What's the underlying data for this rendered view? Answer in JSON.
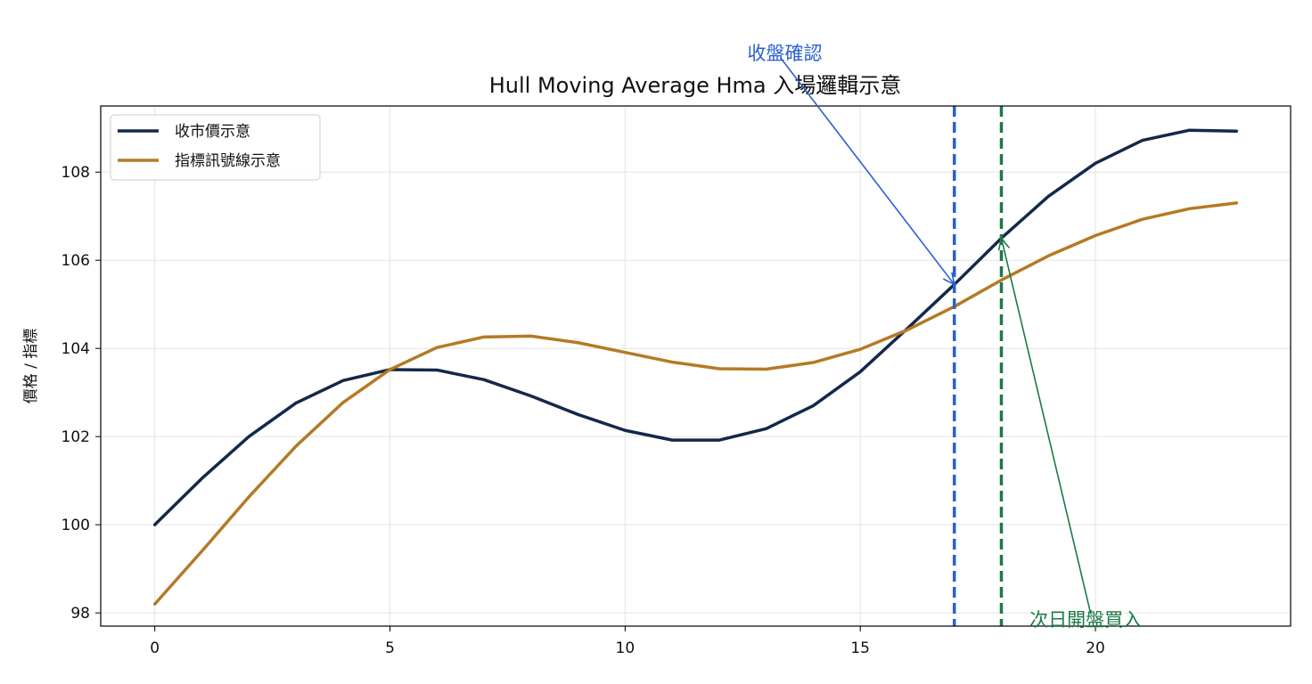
{
  "chart_data": {
    "type": "line",
    "title": "Hull Moving Average Hma 入場邏輯示意",
    "xlabel": "",
    "ylabel": "價格 / 指標",
    "xlim": [
      -1.15,
      24.15
    ],
    "ylim": [
      97.7,
      109.5
    ],
    "xticks": [
      0,
      5,
      10,
      15,
      20
    ],
    "yticks": [
      98,
      100,
      102,
      104,
      106,
      108
    ],
    "grid": true,
    "legend_position": "top-left",
    "x": [
      0,
      1,
      2,
      3,
      4,
      5,
      6,
      7,
      8,
      9,
      10,
      11,
      12,
      13,
      14,
      15,
      16,
      17,
      18,
      19,
      20,
      21,
      22,
      23
    ],
    "series": [
      {
        "name": "收市價示意",
        "color": "#14284b",
        "values": [
          100.0,
          101.05,
          102.0,
          102.76,
          103.27,
          103.52,
          103.51,
          103.29,
          102.92,
          102.5,
          102.14,
          101.92,
          101.92,
          102.18,
          102.7,
          103.47,
          104.45,
          105.45,
          106.5,
          107.45,
          108.2,
          108.72,
          108.95,
          108.93
        ]
      },
      {
        "name": "指標訊號線示意",
        "color": "#b57a24",
        "values": [
          98.2,
          99.4,
          100.63,
          101.78,
          102.77,
          103.52,
          104.02,
          104.26,
          104.28,
          104.13,
          103.91,
          103.69,
          103.54,
          103.53,
          103.68,
          103.98,
          104.42,
          104.95,
          105.55,
          106.1,
          106.56,
          106.93,
          107.17,
          107.3
        ]
      }
    ],
    "vlines": [
      {
        "x": 17,
        "color": "#2a5fd0"
      },
      {
        "x": 18,
        "color": "#1a7a45"
      }
    ],
    "annotations": [
      {
        "text": "收盤確認",
        "color": "#2a5fd0",
        "point": [
          17,
          105.45
        ],
        "text_anchor_data": [
          13.3,
          110.6
        ],
        "text_pos": [
          12.6,
          110.55
        ]
      },
      {
        "text": "次日開盤買入",
        "color": "#1a7a45",
        "point": [
          18,
          106.5
        ],
        "text_anchor_data": [
          19.9,
          97.98
        ],
        "text_pos": [
          18.6,
          97.7
        ]
      }
    ]
  }
}
